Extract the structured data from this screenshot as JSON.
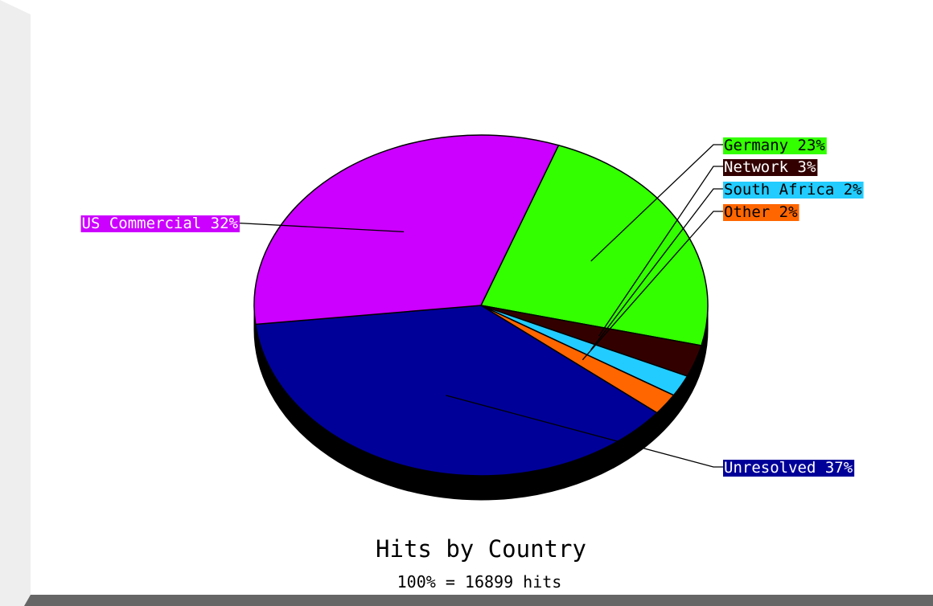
{
  "chart_data": {
    "type": "pie",
    "title": "Hits by Country",
    "subtitle": "100% = 16899 hits",
    "slices": [
      {
        "label": "Germany 23%",
        "value": 23,
        "color": "#33ff00",
        "text_color": "#000000"
      },
      {
        "label": "Network 3%",
        "value": 3,
        "color": "#330000",
        "text_color": "#ffffff"
      },
      {
        "label": "South Africa 2%",
        "value": 2,
        "color": "#22ccff",
        "text_color": "#000000"
      },
      {
        "label": "Other 2%",
        "value": 2,
        "color": "#ff6600",
        "text_color": "#000000"
      },
      {
        "label": "Unresolved 37%",
        "value": 37,
        "color": "#000099",
        "text_color": "#ffffff"
      },
      {
        "label": "US Commercial 32%",
        "value": 32,
        "color": "#cc00ff",
        "text_color": "#ffffff"
      }
    ],
    "legend_placement": "outside labels with leader lines",
    "three_d": true
  }
}
